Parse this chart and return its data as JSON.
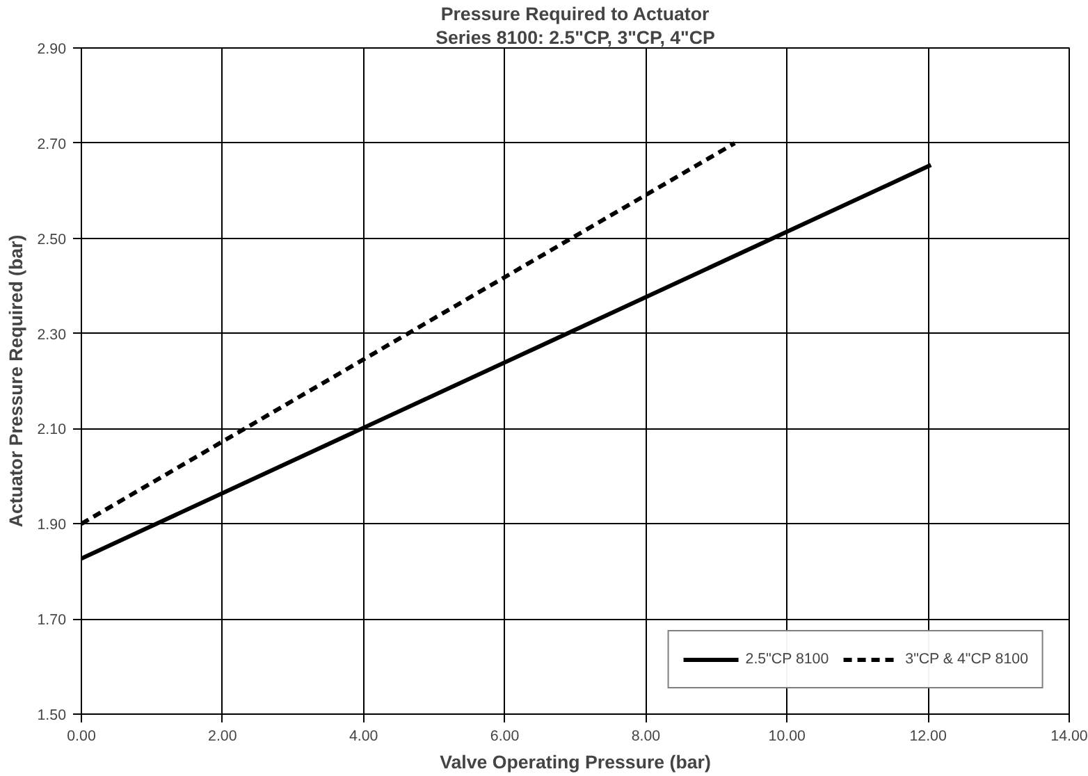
{
  "chart_data": {
    "type": "line",
    "title": "Pressure Required to Actuator",
    "subtitle": "Series 8100: 2.5\"CP, 3\"CP, 4\"CP",
    "xlabel": "Valve Operating Pressure (bar)",
    "ylabel": "Actuator Pressure Required (bar)",
    "series": [
      {
        "name": "2.5\"CP 8100",
        "color": "#000000",
        "line_style": "solid",
        "x": [
          0,
          12.04
        ],
        "values": [
          1.827,
          2.654
        ]
      },
      {
        "name": "3\"CP & 4\"CP 8100",
        "color": "#000000",
        "line_style": "dashed",
        "x": [
          0,
          9.26
        ],
        "values": [
          1.9,
          2.7
        ]
      }
    ],
    "xlim": [
      0,
      14
    ],
    "ylim": [
      1.5,
      2.9
    ],
    "xticks": [
      {
        "value": 0,
        "label": "0.00"
      },
      {
        "value": 2,
        "label": "2.00"
      },
      {
        "value": 4,
        "label": "4.00"
      },
      {
        "value": 6,
        "label": "6.00"
      },
      {
        "value": 8,
        "label": "8.00"
      },
      {
        "value": 10,
        "label": "10.00"
      },
      {
        "value": 12,
        "label": "12.00"
      },
      {
        "value": 14,
        "label": "14.00"
      }
    ],
    "yticks": [
      {
        "value": 1.5,
        "label": "1.50"
      },
      {
        "value": 1.7,
        "label": "1.70"
      },
      {
        "value": 1.9,
        "label": "1.90"
      },
      {
        "value": 2.1,
        "label": "2.10"
      },
      {
        "value": 2.3,
        "label": "2.30"
      },
      {
        "value": 2.5,
        "label": "2.50"
      },
      {
        "value": 2.7,
        "label": "2.70"
      },
      {
        "value": 2.9,
        "label": "2.90"
      }
    ],
    "grid": true,
    "legend": "bottom right",
    "marker": "none"
  }
}
